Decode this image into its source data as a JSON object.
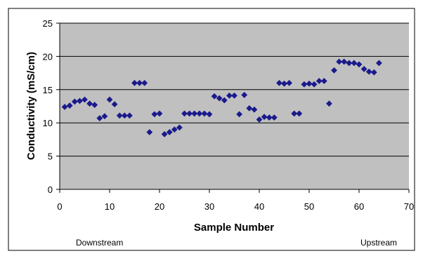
{
  "chart_data": {
    "type": "scatter",
    "title": "",
    "xlabel": "Sample Number",
    "ylabel": "Conductivity (mS/cm)",
    "xlim": [
      0,
      70
    ],
    "ylim": [
      0,
      25
    ],
    "x_ticks": [
      "0",
      "10",
      "20",
      "30",
      "40",
      "50",
      "60",
      "70"
    ],
    "y_ticks": [
      "0",
      "5",
      "10",
      "15",
      "20",
      "25"
    ],
    "grid": "horizontal",
    "legend": "none",
    "marker": "diamond",
    "colors": {
      "marker": "#1a1a8c",
      "plot_background": "#c0c0c0",
      "gridline": "#000000"
    },
    "annotations": {
      "left": "Downstream",
      "right": "Upstream"
    },
    "points": [
      [
        1,
        12.4
      ],
      [
        2,
        12.6
      ],
      [
        3,
        13.2
      ],
      [
        4,
        13.3
      ],
      [
        5,
        13.5
      ],
      [
        6,
        12.9
      ],
      [
        7,
        12.7
      ],
      [
        8,
        10.7
      ],
      [
        9,
        11.0
      ],
      [
        10,
        13.5
      ],
      [
        11,
        12.8
      ],
      [
        12,
        11.1
      ],
      [
        13,
        11.1
      ],
      [
        14,
        11.1
      ],
      [
        15,
        16.0
      ],
      [
        16,
        16.0
      ],
      [
        17,
        16.0
      ],
      [
        18,
        8.6
      ],
      [
        19,
        11.3
      ],
      [
        20,
        11.4
      ],
      [
        21,
        8.3
      ],
      [
        22,
        8.6
      ],
      [
        23,
        9.0
      ],
      [
        24,
        9.3
      ],
      [
        25,
        11.4
      ],
      [
        26,
        11.4
      ],
      [
        27,
        11.4
      ],
      [
        28,
        11.4
      ],
      [
        29,
        11.4
      ],
      [
        30,
        11.3
      ],
      [
        31,
        14.0
      ],
      [
        32,
        13.7
      ],
      [
        33,
        13.4
      ],
      [
        34,
        14.1
      ],
      [
        35,
        14.1
      ],
      [
        36,
        11.3
      ],
      [
        37,
        14.2
      ],
      [
        38,
        12.2
      ],
      [
        39,
        12.0
      ],
      [
        40,
        10.5
      ],
      [
        41,
        10.9
      ],
      [
        42,
        10.8
      ],
      [
        43,
        10.8
      ],
      [
        44,
        16.0
      ],
      [
        45,
        15.9
      ],
      [
        46,
        16.0
      ],
      [
        47,
        11.4
      ],
      [
        48,
        11.4
      ],
      [
        49,
        15.8
      ],
      [
        50,
        15.9
      ],
      [
        51,
        15.8
      ],
      [
        52,
        16.3
      ],
      [
        53,
        16.3
      ],
      [
        54,
        12.9
      ],
      [
        55,
        17.9
      ],
      [
        56,
        19.2
      ],
      [
        57,
        19.2
      ],
      [
        58,
        19.0
      ],
      [
        59,
        19.0
      ],
      [
        60,
        18.8
      ],
      [
        61,
        18.1
      ],
      [
        62,
        17.7
      ],
      [
        63,
        17.6
      ],
      [
        64,
        19.0
      ]
    ]
  }
}
